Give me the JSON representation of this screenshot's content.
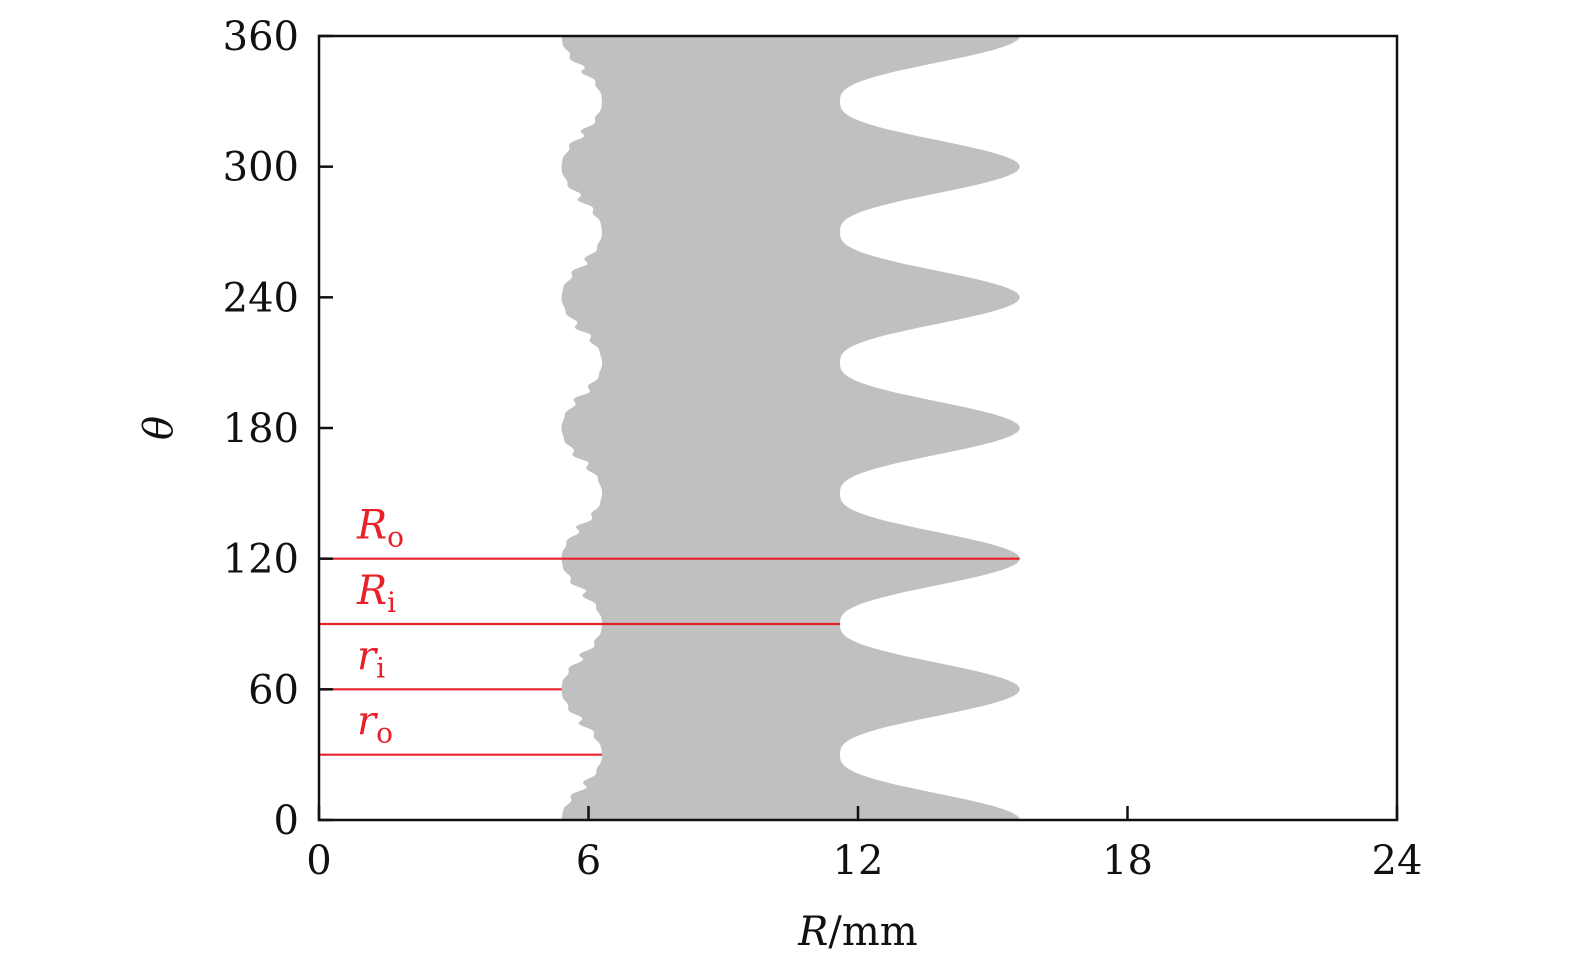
{
  "chart_data": {
    "type": "area",
    "xlabel_main": "R",
    "xlabel_unit": "/mm",
    "ylabel": "θ",
    "xlim": [
      0,
      24
    ],
    "ylim": [
      0,
      360
    ],
    "xticks": [
      "0",
      "6",
      "12",
      "18",
      "24"
    ],
    "yticks": [
      "0",
      "60",
      "120",
      "180",
      "240",
      "300",
      "360"
    ],
    "grid": false,
    "fill_color": "#c0c0c0",
    "reference_color": "#e8202a",
    "region": {
      "name": "",
      "inner_boundary": {
        "min_R": 5.4,
        "max_R": 6.3,
        "min_at_theta": [
          0,
          60,
          120,
          180,
          240,
          300,
          360
        ],
        "max_at_theta": [
          30,
          90,
          150,
          210,
          270,
          330
        ]
      },
      "outer_boundary": {
        "min_R": 11.6,
        "max_R": 15.6,
        "max_at_theta": [
          0,
          60,
          120,
          180,
          240,
          300,
          360
        ],
        "min_at_theta": [
          30,
          90,
          150,
          210,
          270,
          330
        ]
      },
      "period_deg": 60
    },
    "reference_lines": [
      {
        "id": "Ro",
        "main": "R",
        "sub": "o",
        "theta": 120,
        "R_end": 15.6
      },
      {
        "id": "Ri",
        "main": "R",
        "sub": "i",
        "theta": 90,
        "R_end": 11.6
      },
      {
        "id": "ri",
        "main": "r",
        "sub": "i",
        "theta": 60,
        "R_end": 5.4
      },
      {
        "id": "ro",
        "main": "r",
        "sub": "o",
        "theta": 30,
        "R_end": 6.3
      }
    ]
  }
}
